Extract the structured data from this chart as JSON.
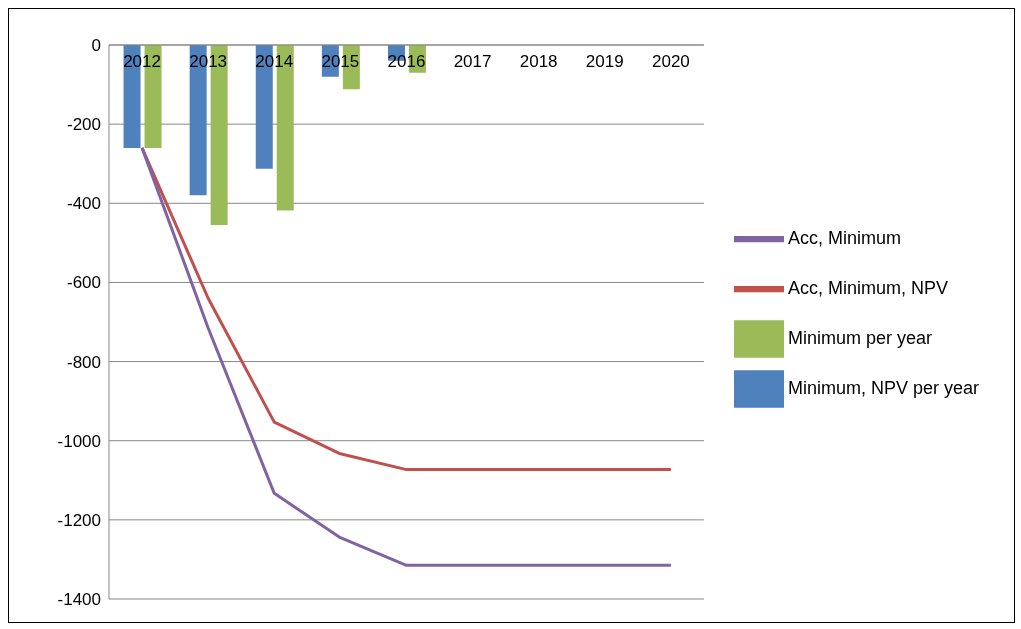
{
  "chart_data": {
    "type": "bar",
    "categories": [
      "2012",
      "2013",
      "2014",
      "2015",
      "2016",
      "2017",
      "2018",
      "2019",
      "2020"
    ],
    "series": [
      {
        "name": "Minimum, NPV per year",
        "color": "#4f81bd",
        "values": [
          -260,
          -380,
          -313,
          -80,
          -40,
          null,
          null,
          null,
          null
        ]
      },
      {
        "name": "Minimum per year",
        "color": "#9bbb59",
        "values": [
          -260,
          -455,
          -418,
          -112,
          -70,
          null,
          null,
          null,
          null
        ]
      },
      {
        "name": "Acc, Minimum, NPV",
        "type": "line",
        "color": "#c0504d",
        "values": [
          -260,
          -640,
          -953,
          -1033,
          -1073,
          -1073,
          -1073,
          -1073,
          -1073
        ]
      },
      {
        "name": "Acc, Minimum",
        "type": "line",
        "color": "#8064a2",
        "values": [
          -260,
          -715,
          -1133,
          -1245,
          -1315,
          -1315,
          -1315,
          -1315,
          -1315
        ]
      }
    ],
    "ylim": [
      -1400,
      0
    ],
    "yticks": [
      -1400,
      -1200,
      -1000,
      -800,
      -600,
      -400,
      -200,
      0
    ],
    "grid": "y",
    "legend": "right",
    "marker": "none"
  }
}
